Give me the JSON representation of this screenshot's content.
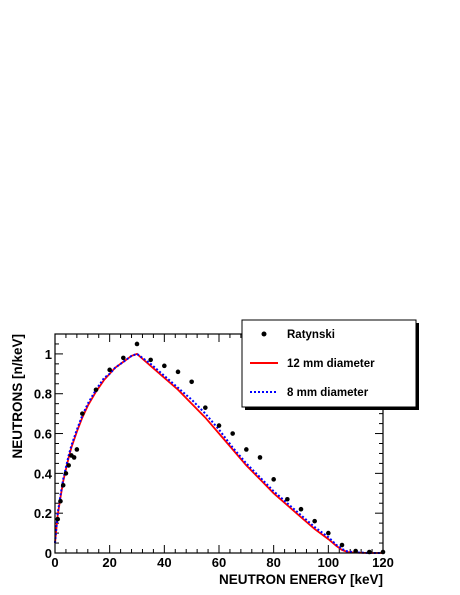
{
  "chart_data": {
    "type": "line",
    "xlabel": "NEUTRON ENERGY [keV]",
    "ylabel": "NEUTRONS [n/keV]",
    "xlim": [
      0,
      120
    ],
    "ylim": [
      0,
      1.1
    ],
    "xticks": [
      "0",
      "20",
      "40",
      "60",
      "80",
      "100",
      "120"
    ],
    "xtick_values": [
      0,
      20,
      40,
      60,
      80,
      100,
      120
    ],
    "yticks": [
      "0",
      "0.2",
      "0.4",
      "0.6",
      "0.8",
      "1"
    ],
    "ytick_values": [
      0,
      0.2,
      0.4,
      0.6,
      0.8,
      1.0
    ],
    "grid": false,
    "legend_position": "top-right",
    "series": [
      {
        "name": "Ratynski",
        "kind": "points",
        "color": "#000000",
        "x": [
          1,
          2,
          3,
          4,
          5,
          6,
          7,
          8,
          10,
          15,
          20,
          25,
          30,
          35,
          40,
          45,
          50,
          55,
          60,
          65,
          70,
          75,
          80,
          85,
          90,
          95,
          100,
          105,
          110,
          115,
          120
        ],
        "y": [
          0.17,
          0.26,
          0.34,
          0.4,
          0.44,
          0.49,
          0.48,
          0.52,
          0.7,
          0.82,
          0.92,
          0.98,
          1.05,
          0.97,
          0.94,
          0.91,
          0.86,
          0.73,
          0.64,
          0.6,
          0.52,
          0.48,
          0.37,
          0.27,
          0.22,
          0.16,
          0.1,
          0.04,
          0.01,
          0.005,
          0.005
        ]
      },
      {
        "name": "12 mm diameter",
        "kind": "line",
        "color": "#ff0000",
        "dash": "solid",
        "x": [
          0,
          1,
          2,
          3,
          4,
          5,
          6,
          8,
          10,
          12,
          15,
          18,
          20,
          22,
          25,
          28,
          30,
          35,
          40,
          45,
          50,
          55,
          60,
          65,
          70,
          75,
          80,
          85,
          90,
          95,
          100,
          103,
          105,
          107,
          110,
          115,
          120
        ],
        "y": [
          0.05,
          0.19,
          0.28,
          0.36,
          0.42,
          0.48,
          0.53,
          0.61,
          0.68,
          0.74,
          0.81,
          0.87,
          0.9,
          0.93,
          0.96,
          0.99,
          1.0,
          0.94,
          0.88,
          0.82,
          0.75,
          0.68,
          0.6,
          0.52,
          0.44,
          0.37,
          0.3,
          0.24,
          0.18,
          0.12,
          0.07,
          0.035,
          0.015,
          0.005,
          0.002,
          0.0,
          0.0
        ]
      },
      {
        "name": "8 mm diameter",
        "kind": "line",
        "color": "#0000ff",
        "dash": "dotted",
        "x": [
          0,
          1,
          2,
          3,
          4,
          5,
          6,
          8,
          10,
          12,
          15,
          18,
          20,
          22,
          25,
          28,
          30,
          35,
          40,
          45,
          50,
          55,
          60,
          65,
          70,
          75,
          80,
          85,
          90,
          95,
          100,
          103,
          105,
          107,
          110,
          115,
          120
        ],
        "y": [
          0.05,
          0.2,
          0.29,
          0.37,
          0.43,
          0.49,
          0.54,
          0.62,
          0.69,
          0.75,
          0.82,
          0.88,
          0.9,
          0.93,
          0.96,
          0.99,
          1.0,
          0.95,
          0.89,
          0.83,
          0.77,
          0.7,
          0.62,
          0.53,
          0.45,
          0.38,
          0.31,
          0.25,
          0.19,
          0.13,
          0.08,
          0.04,
          0.02,
          0.008,
          0.003,
          0.0,
          0.0
        ]
      }
    ]
  }
}
